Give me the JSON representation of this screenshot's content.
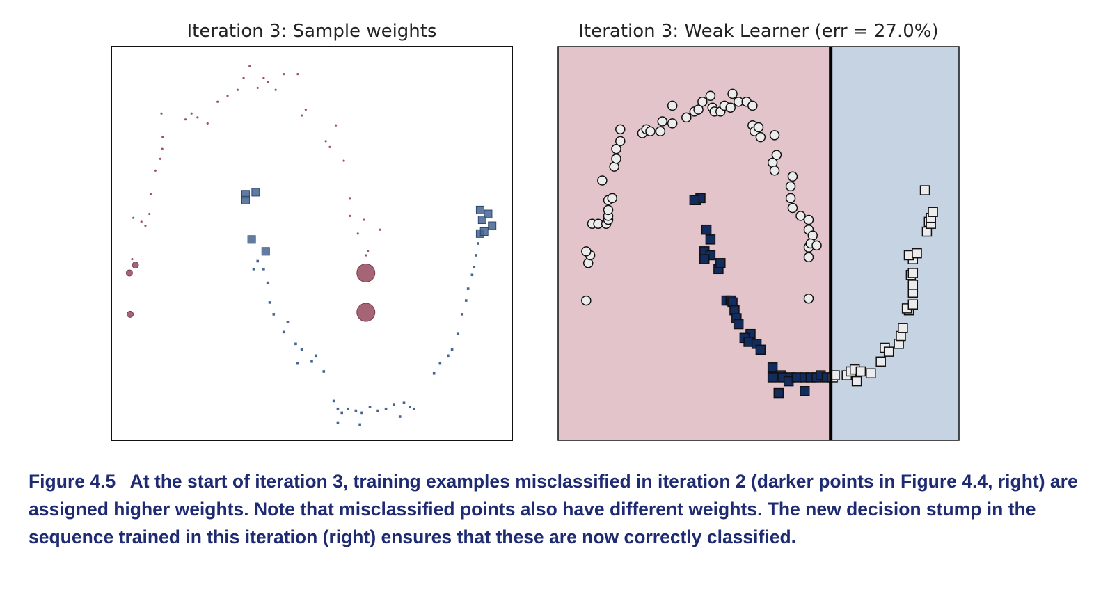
{
  "caption": {
    "label": "Figure 4.5",
    "text": "At the start of iteration 3, training examples misclassified in iteration 2 (darker points in Figure 4.4, right) are assigned higher weights. Note that misclassified points also have different weights. The new decision stump in the sequence trained in this iteration (right) ensures that these are now correctly classified."
  },
  "colors": {
    "class_circle_weighted": "#9c5468",
    "class_square_weighted": "#45658f",
    "region_left": "#e3c4cb",
    "region_right": "#c5d3e3",
    "misclassified_square": "#132c5e",
    "point_fill": "#ececec",
    "stump_line": "#000000"
  },
  "chart_data": [
    {
      "type": "scatter",
      "title": "Iteration 3: Sample weights",
      "xlim": [
        0,
        100
      ],
      "ylim": [
        0,
        100
      ],
      "series": [
        {
          "marker": "circle",
          "color": "#9c5468",
          "points": [
            [
              4.5,
              42.5,
              2
            ],
            [
              6,
              44.5,
              2
            ],
            [
              4.7,
              32,
              2
            ],
            [
              5.2,
              46,
              1
            ],
            [
              5.5,
              56.5,
              1
            ],
            [
              7.5,
              55.5,
              1
            ],
            [
              8.5,
              54.5,
              1
            ],
            [
              9.5,
              57.5,
              1
            ],
            [
              9.8,
              62.5,
              1
            ],
            [
              11,
              68.5,
              1
            ],
            [
              12.2,
              71.5,
              1
            ],
            [
              12.7,
              74,
              1
            ],
            [
              12.8,
              77,
              1
            ],
            [
              12.5,
              83,
              1
            ],
            [
              18.5,
              81.5,
              1
            ],
            [
              20,
              83,
              1
            ],
            [
              21.5,
              82,
              1
            ],
            [
              24,
              80.5,
              1
            ],
            [
              26.5,
              86,
              1
            ],
            [
              29,
              87.5,
              1
            ],
            [
              31.5,
              89,
              1
            ],
            [
              33,
              92,
              1
            ],
            [
              34.5,
              95,
              1
            ],
            [
              36.5,
              89.5,
              1
            ],
            [
              38,
              92,
              1
            ],
            [
              39,
              91,
              1
            ],
            [
              41,
              89,
              1
            ],
            [
              43,
              93,
              1
            ],
            [
              46.5,
              93,
              1
            ],
            [
              47.5,
              82.5,
              1
            ],
            [
              48.5,
              84,
              1
            ],
            [
              56,
              80,
              1
            ],
            [
              53.5,
              76,
              1
            ],
            [
              54.5,
              74.5,
              1
            ],
            [
              58,
              71,
              1
            ],
            [
              59.5,
              61.5,
              1
            ],
            [
              59.5,
              57,
              1
            ],
            [
              61.5,
              52.5,
              1
            ],
            [
              63,
              56,
              1
            ],
            [
              67,
              53.5,
              1
            ],
            [
              64,
              48,
              1
            ],
            [
              63.5,
              47,
              1
            ],
            [
              63.5,
              42.5,
              5.5
            ],
            [
              63.5,
              32.5,
              5.5
            ]
          ]
        },
        {
          "marker": "square",
          "color": "#45658f",
          "points": [
            [
              33.5,
              62.5,
              3.5
            ],
            [
              36,
              63,
              3.5
            ],
            [
              33.5,
              61,
              3.5
            ],
            [
              35,
              51,
              3.5
            ],
            [
              38.5,
              48,
              3.5
            ],
            [
              36.5,
              45.5,
              1
            ],
            [
              35.5,
              43.5,
              1
            ],
            [
              38,
              43.5,
              1
            ],
            [
              39,
              40,
              1
            ],
            [
              39.5,
              35,
              1
            ],
            [
              40.5,
              32,
              1
            ],
            [
              44,
              30,
              1
            ],
            [
              43,
              27.5,
              1
            ],
            [
              46,
              24.5,
              1
            ],
            [
              47.5,
              23,
              1
            ],
            [
              50,
              20,
              1
            ],
            [
              51,
              21.5,
              1
            ],
            [
              46.5,
              19.5,
              1
            ],
            [
              53,
              17.5,
              1
            ],
            [
              55.5,
              10,
              1
            ],
            [
              56.5,
              8,
              1
            ],
            [
              57.5,
              7,
              1
            ],
            [
              59,
              8,
              1
            ],
            [
              61,
              7.5,
              1
            ],
            [
              62.5,
              7,
              1
            ],
            [
              64.5,
              8.5,
              1
            ],
            [
              66.5,
              7.5,
              1
            ],
            [
              68.5,
              8,
              1
            ],
            [
              70.5,
              9,
              1
            ],
            [
              72,
              6,
              1
            ],
            [
              73,
              9.5,
              1
            ],
            [
              74.5,
              8.5,
              1
            ],
            [
              56.5,
              4.5,
              1
            ],
            [
              62,
              4,
              1
            ],
            [
              75.5,
              8,
              1
            ],
            [
              80.5,
              17,
              1
            ],
            [
              82,
              19.5,
              1
            ],
            [
              84,
              21.5,
              1
            ],
            [
              85,
              23,
              1
            ],
            [
              86.5,
              27,
              1
            ],
            [
              87.5,
              32,
              1
            ],
            [
              88.5,
              35.5,
              1
            ],
            [
              89,
              38.5,
              1
            ],
            [
              90,
              42,
              1
            ],
            [
              90.5,
              44,
              1
            ],
            [
              91,
              47,
              1
            ],
            [
              91.5,
              50,
              1
            ],
            [
              92,
              52.5,
              3.5
            ],
            [
              93,
              53,
              3.5
            ],
            [
              92.5,
              56,
              3.5
            ],
            [
              92,
              58.5,
              3.5
            ],
            [
              94,
              57.5,
              3.5
            ],
            [
              95,
              54.5,
              3.5
            ]
          ]
        }
      ]
    },
    {
      "type": "scatter",
      "title": "Iteration 3: Weak Learner (err = 27.0%)",
      "xlim": [
        0,
        100
      ],
      "ylim": [
        0,
        100
      ],
      "threshold_x": 68,
      "series": [
        {
          "marker": "circle",
          "points": [
            [
              7,
              35.5
            ],
            [
              7.5,
              45
            ],
            [
              8,
              47
            ],
            [
              7,
              48
            ],
            [
              8.5,
              55
            ],
            [
              10,
              55
            ],
            [
              12,
              55
            ],
            [
              12.5,
              56
            ],
            [
              12.5,
              57
            ],
            [
              12.5,
              58.5
            ],
            [
              12.5,
              61
            ],
            [
              13.5,
              61.5
            ],
            [
              11,
              66
            ],
            [
              14,
              69.5
            ],
            [
              14.5,
              71.5
            ],
            [
              14.5,
              74
            ],
            [
              15.5,
              76
            ],
            [
              15.5,
              79
            ],
            [
              21,
              78
            ],
            [
              22,
              79
            ],
            [
              23,
              78.5
            ],
            [
              25.5,
              78.5
            ],
            [
              26,
              81
            ],
            [
              28.5,
              80.5
            ],
            [
              28.5,
              85
            ],
            [
              32,
              82
            ],
            [
              34,
              83.5
            ],
            [
              35,
              84
            ],
            [
              36,
              86
            ],
            [
              38,
              87.5
            ],
            [
              38.5,
              84.5
            ],
            [
              39,
              83.5
            ],
            [
              40.5,
              83.5
            ],
            [
              41.5,
              85
            ],
            [
              43,
              84.5
            ],
            [
              43.5,
              88
            ],
            [
              45,
              86
            ],
            [
              47,
              86
            ],
            [
              48.5,
              85
            ],
            [
              48.5,
              80
            ],
            [
              49,
              78.5
            ],
            [
              50,
              79.5
            ],
            [
              50.5,
              77
            ],
            [
              54,
              77.5
            ],
            [
              53.5,
              70.5
            ],
            [
              54.5,
              72.5
            ],
            [
              54,
              68.5
            ],
            [
              58.5,
              67
            ],
            [
              58,
              64.5
            ],
            [
              58,
              61.5
            ],
            [
              58.5,
              59
            ],
            [
              60.5,
              57
            ],
            [
              62.5,
              56
            ],
            [
              62.5,
              53.5
            ],
            [
              63.5,
              52
            ],
            [
              62.5,
              49
            ],
            [
              63,
              50
            ],
            [
              62.5,
              46.5
            ],
            [
              64.5,
              49.5
            ],
            [
              62.5,
              36
            ]
          ]
        },
        {
          "marker": "square",
          "points": [
            [
              34.5,
              61
            ],
            [
              35.5,
              61.5
            ],
            [
              34,
              61
            ],
            [
              37,
              53.5
            ],
            [
              38,
              51
            ],
            [
              36.5,
              48
            ],
            [
              38,
              47
            ],
            [
              36.5,
              46
            ],
            [
              40,
              43.5
            ],
            [
              40.5,
              45
            ],
            [
              42,
              35.5
            ],
            [
              43,
              35.5
            ],
            [
              43.5,
              35
            ],
            [
              44,
              33
            ],
            [
              44.5,
              31
            ],
            [
              45,
              29.5
            ],
            [
              48,
              27
            ],
            [
              46.5,
              26
            ],
            [
              47.5,
              25
            ],
            [
              49.5,
              24.5
            ],
            [
              50.5,
              23
            ],
            [
              53.5,
              18.5
            ],
            [
              55.5,
              16.5
            ],
            [
              53.5,
              16
            ],
            [
              56,
              16
            ],
            [
              58,
              16
            ],
            [
              57.5,
              15
            ],
            [
              59.5,
              16
            ],
            [
              61.5,
              16
            ],
            [
              63,
              16
            ],
            [
              64.5,
              16
            ],
            [
              65.5,
              16.5
            ],
            [
              67,
              16
            ],
            [
              55,
              12
            ],
            [
              61.5,
              12.5
            ],
            [
              68.5,
              16
            ],
            [
              69,
              16.5
            ],
            [
              72,
              16.5
            ],
            [
              73,
              17.5
            ],
            [
              74,
              18
            ],
            [
              75.5,
              17.5
            ],
            [
              74.5,
              15
            ],
            [
              78,
              17
            ],
            [
              80.5,
              20
            ],
            [
              81.5,
              23.5
            ],
            [
              82.5,
              22.5
            ],
            [
              85,
              24.5
            ],
            [
              85.5,
              26.5
            ],
            [
              86,
              28.5
            ],
            [
              87.5,
              33
            ],
            [
              87,
              33.5
            ],
            [
              88.5,
              34.5
            ],
            [
              88.5,
              37.5
            ],
            [
              88.5,
              39.5
            ],
            [
              88,
              42
            ],
            [
              88.5,
              42.5
            ],
            [
              88.5,
              46
            ],
            [
              87.5,
              47
            ],
            [
              89.5,
              47.5
            ],
            [
              92,
              53
            ],
            [
              92.5,
              55.5
            ],
            [
              93,
              55
            ],
            [
              93,
              56.5
            ],
            [
              93.5,
              58
            ],
            [
              91.5,
              63.5
            ]
          ]
        }
      ]
    }
  ]
}
